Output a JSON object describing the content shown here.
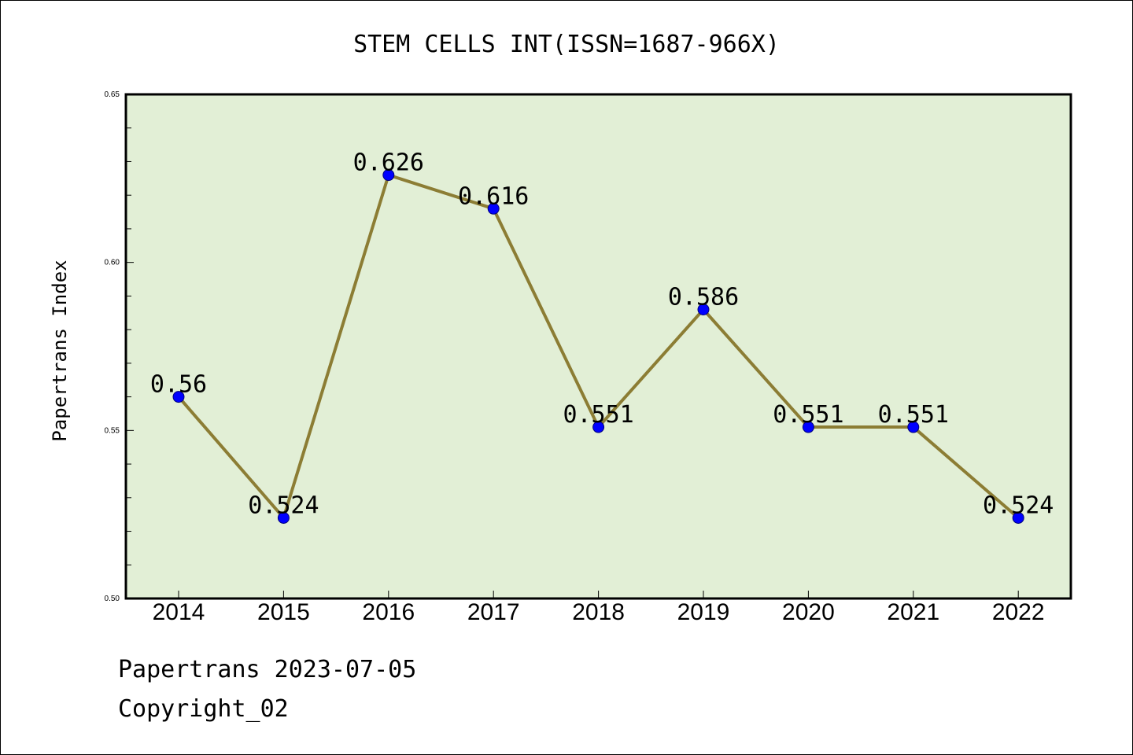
{
  "chart_data": {
    "type": "line",
    "title": "STEM CELLS INT(ISSN=1687-966X)",
    "xlabel": "",
    "ylabel": "Papertrans Index",
    "categories": [
      "2014",
      "2015",
      "2016",
      "2017",
      "2018",
      "2019",
      "2020",
      "2021",
      "2022"
    ],
    "series": [
      {
        "values": [
          0.56,
          0.524,
          0.626,
          0.616,
          0.551,
          0.586,
          0.551,
          0.551,
          0.524
        ]
      }
    ],
    "data_labels": [
      "0.56",
      "0.524",
      "0.626",
      "0.616",
      "0.551",
      "0.586",
      "0.551",
      "0.551",
      "0.524"
    ],
    "ylim": [
      0.5,
      0.65
    ],
    "yticks": [
      {
        "value": 0.5,
        "label": "0.50"
      },
      {
        "value": 0.55,
        "label": "0.55"
      },
      {
        "value": 0.6,
        "label": "0.60"
      },
      {
        "value": 0.65,
        "label": "0.65"
      }
    ],
    "y_minor_step": 0.01,
    "grid": false,
    "colors": {
      "plot_background": "#e2efd6",
      "line": "#8c7d34",
      "marker": "#0000ff",
      "axes": "#000000"
    }
  },
  "footer": {
    "source": "Papertrans 2023-07-05",
    "copyright": "Copyright_02"
  }
}
